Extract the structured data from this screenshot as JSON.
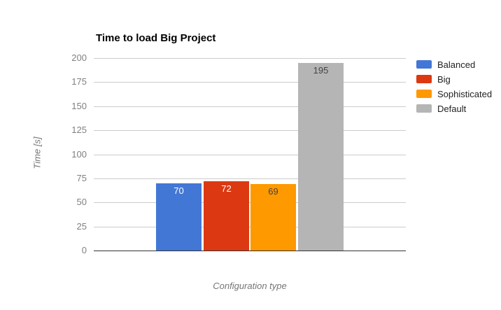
{
  "chart": {
    "title": "Time to load Big Project",
    "xlabel": "Configuration type",
    "ylabel": "Time [s]"
  },
  "chart_data": {
    "type": "bar",
    "title": "Time to load Big Project",
    "xlabel": "Configuration type",
    "ylabel": "Time [s]",
    "categories": [
      "Balanced",
      "Big",
      "Sophisticated",
      "Default"
    ],
    "values": [
      70,
      72,
      69,
      195
    ],
    "value_labels": [
      "70",
      "72",
      "69",
      "195"
    ],
    "series_colors": [
      "#4377D5",
      "#DC3912",
      "#FF9900",
      "#B5B5B5"
    ],
    "value_label_colors": [
      "#FFFFFF",
      "#FFFFFF",
      "#444444",
      "#444444"
    ],
    "yticks": [
      0,
      25,
      50,
      75,
      100,
      125,
      150,
      175,
      200
    ],
    "ytick_labels": [
      "0",
      "25",
      "50",
      "75",
      "100",
      "125",
      "150",
      "175",
      "200"
    ],
    "ylim": [
      0,
      200
    ],
    "grid": true,
    "legend_position": "right",
    "legend": [
      {
        "label": "Balanced",
        "color": "#4377D5"
      },
      {
        "label": "Big",
        "color": "#DC3912"
      },
      {
        "label": "Sophisticated",
        "color": "#FF9900"
      },
      {
        "label": "Default",
        "color": "#B5B5B5"
      }
    ],
    "background_color": "#FFFFFF",
    "gridline_color": "#CCCCCC",
    "axis_line_color": "#333333",
    "tick_label_color": "#808080",
    "axis_title_color": "#757575",
    "legend_text_color": "#222222",
    "title_color": "#000000"
  }
}
